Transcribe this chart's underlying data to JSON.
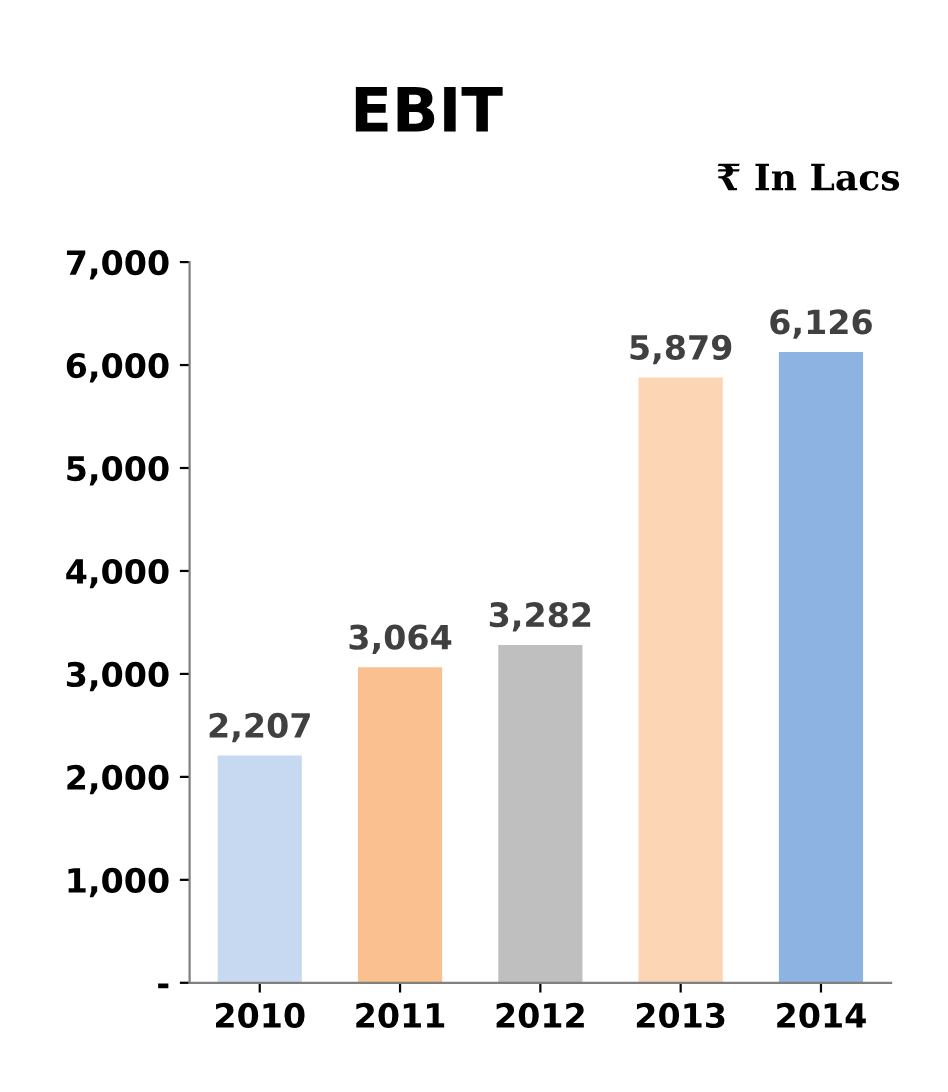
{
  "chart_data": {
    "type": "bar",
    "title": "EBIT",
    "annotations": [
      "₹ In Lacs"
    ],
    "categories": [
      "2010",
      "2011",
      "2012",
      "2013",
      "2014"
    ],
    "values": [
      2207,
      3064,
      3282,
      5879,
      6126
    ],
    "colors": [
      "#c6d9f0",
      "#fac08f",
      "#bfbfbf",
      "#fcd5b4",
      "#8db3e2"
    ],
    "value_labels": [
      "2,207",
      "3,064",
      "3,282",
      "5,879",
      "6,126"
    ],
    "ylim": [
      0,
      7000
    ],
    "yticks": [
      {
        "value": 0,
        "label": "-"
      },
      {
        "value": 1000,
        "label": "1,000"
      },
      {
        "value": 2000,
        "label": "2,000"
      },
      {
        "value": 3000,
        "label": "3,000"
      },
      {
        "value": 4000,
        "label": "4,000"
      },
      {
        "value": 5000,
        "label": "5,000"
      },
      {
        "value": 6000,
        "label": "6,000"
      },
      {
        "value": 7000,
        "label": "7,000"
      }
    ],
    "grid": false,
    "legend": false
  }
}
